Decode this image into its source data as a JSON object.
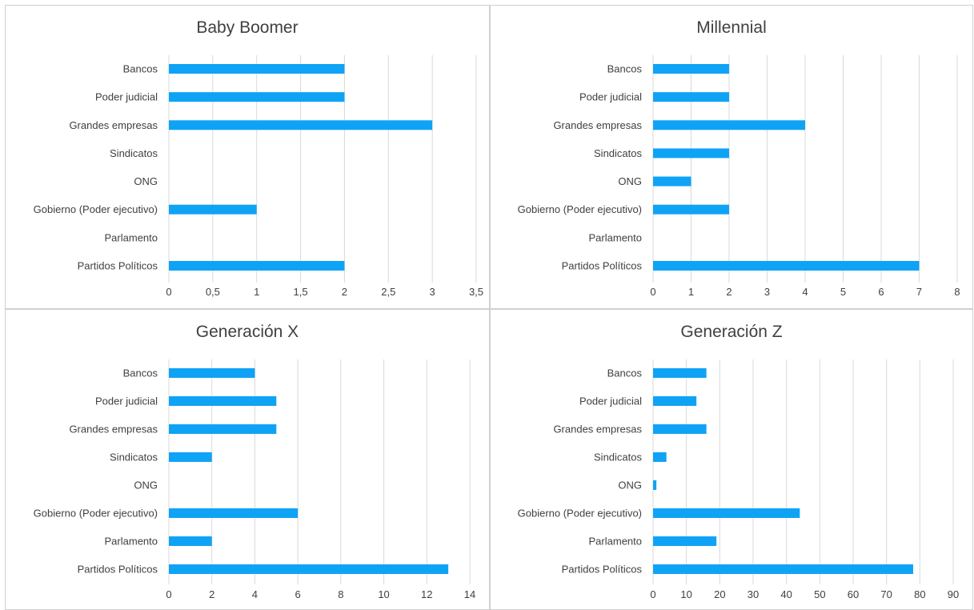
{
  "colors": {
    "bar": "#0fa3f5",
    "gridline": "#d9d9d9",
    "text": "#404040",
    "panel_border": "#d0d0d0"
  },
  "chart_data": [
    {
      "type": "bar",
      "orientation": "horizontal",
      "title": "Baby Boomer",
      "categories": [
        "Bancos",
        "Poder judicial",
        "Grandes empresas",
        "Sindicatos",
        "ONG",
        "Gobierno (Poder ejecutivo)",
        "Parlamento",
        "Partidos Políticos"
      ],
      "values": [
        2,
        2,
        3,
        0,
        0,
        1,
        0,
        2
      ],
      "xlim": [
        0,
        3.5
      ],
      "ticks": [
        "0",
        "0,5",
        "1",
        "1,5",
        "2",
        "2,5",
        "3",
        "3,5"
      ],
      "grid": true,
      "legend": "none"
    },
    {
      "type": "bar",
      "orientation": "horizontal",
      "title": "Millennial",
      "categories": [
        "Bancos",
        "Poder judicial",
        "Grandes empresas",
        "Sindicatos",
        "ONG",
        "Gobierno (Poder ejecutivo)",
        "Parlamento",
        "Partidos Políticos"
      ],
      "values": [
        2,
        2,
        4,
        2,
        1,
        2,
        0,
        7
      ],
      "xlim": [
        0,
        8
      ],
      "ticks": [
        "0",
        "1",
        "2",
        "3",
        "4",
        "5",
        "6",
        "7",
        "8"
      ],
      "grid": true,
      "legend": "none"
    },
    {
      "type": "bar",
      "orientation": "horizontal",
      "title": "Generación X",
      "categories": [
        "Bancos",
        "Poder judicial",
        "Grandes empresas",
        "Sindicatos",
        "ONG",
        "Gobierno (Poder ejecutivo)",
        "Parlamento",
        "Partidos Políticos"
      ],
      "values": [
        4,
        5,
        5,
        2,
        0,
        6,
        2,
        13
      ],
      "xlim": [
        0,
        14
      ],
      "ticks": [
        "0",
        "2",
        "4",
        "6",
        "8",
        "10",
        "12",
        "14"
      ],
      "grid": true,
      "legend": "none"
    },
    {
      "type": "bar",
      "orientation": "horizontal",
      "title": "Generación Z",
      "categories": [
        "Bancos",
        "Poder judicial",
        "Grandes empresas",
        "Sindicatos",
        "ONG",
        "Gobierno (Poder ejecutivo)",
        "Parlamento",
        "Partidos Políticos"
      ],
      "values": [
        16,
        13,
        16,
        4,
        1,
        44,
        19,
        78
      ],
      "xlim": [
        0,
        90
      ],
      "ticks": [
        "0",
        "10",
        "20",
        "30",
        "40",
        "50",
        "60",
        "70",
        "80",
        "90"
      ],
      "grid": true,
      "legend": "none"
    }
  ]
}
